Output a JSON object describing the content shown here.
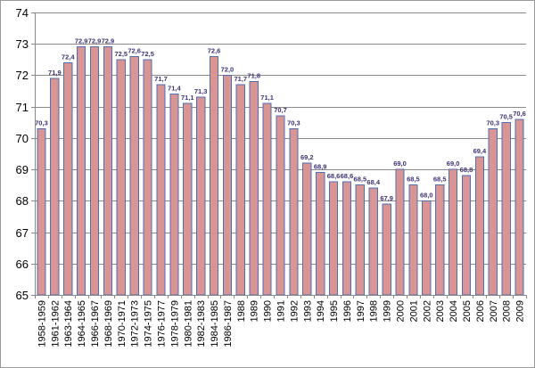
{
  "chart_data": {
    "type": "bar",
    "title": "",
    "xlabel": "",
    "ylabel": "",
    "ylim": [
      65,
      74
    ],
    "yticks": [
      65,
      66,
      67,
      68,
      69,
      70,
      71,
      72,
      73,
      74
    ],
    "grid": true,
    "legend": "none",
    "bar_color": "#d99594",
    "bar_edge_color": "#4f6fb5",
    "label_color": "#3f3175",
    "categories": [
      "1958-1959",
      "1961-1962",
      "1963-1964",
      "1964-1965",
      "1966-1967",
      "1968-1969",
      "1970-1971",
      "1972-1973",
      "1974-1975",
      "1976-1977",
      "1978-1979",
      "1980-1981",
      "1982-1983",
      "1984-1985",
      "1986-1987",
      "1988",
      "1989",
      "1990",
      "1991",
      "1992",
      "1993",
      "1994",
      "1995",
      "1996",
      "1997",
      "1998",
      "1999",
      "2000",
      "2001",
      "2002",
      "2003",
      "2004",
      "2005",
      "2006",
      "2007",
      "2008",
      "2009"
    ],
    "values": [
      70.3,
      71.9,
      72.4,
      72.9,
      72.9,
      72.9,
      72.5,
      72.6,
      72.5,
      71.7,
      71.4,
      71.1,
      71.3,
      72.6,
      72.0,
      71.7,
      71.8,
      71.1,
      70.7,
      70.3,
      69.2,
      68.9,
      68.6,
      68.6,
      68.5,
      68.4,
      67.9,
      69.0,
      68.5,
      68.0,
      68.5,
      69.0,
      68.8,
      69.4,
      70.3,
      70.5,
      70.6
    ],
    "data_labels": [
      "70,3",
      "71,9",
      "72,4",
      "72,9",
      "72,9",
      "72,9",
      "72,5",
      "72,6",
      "72,5",
      "71,7",
      "71,4",
      "71,1",
      "71,3",
      "72,6",
      "72,0",
      "71,7",
      "71,8",
      "71,1",
      "70,7",
      "70,3",
      "69,2",
      "68,9",
      "68,6",
      "68,6",
      "68,5",
      "68,4",
      "67,9",
      "69,0",
      "68,5",
      "68,0",
      "68,5",
      "69,0",
      "68,8",
      "69,4",
      "70,3",
      "70,5",
      "70,6"
    ]
  }
}
